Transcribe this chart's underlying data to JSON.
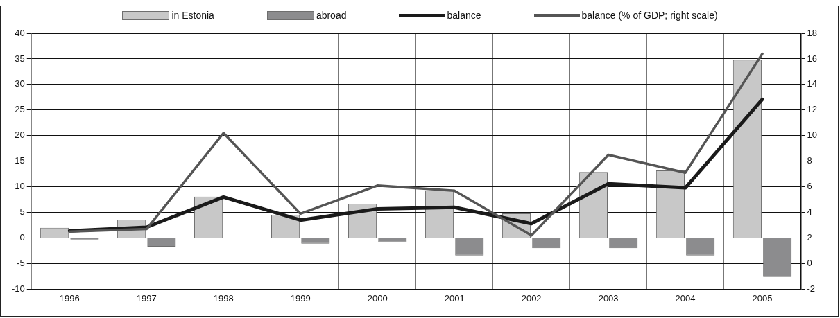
{
  "chart_data": {
    "type": "bar",
    "categories": [
      "1996",
      "1997",
      "1998",
      "1999",
      "2000",
      "2001",
      "2002",
      "2003",
      "2004",
      "2005"
    ],
    "series": [
      {
        "name": "in Estonia",
        "color": "#c8c8c8",
        "values": [
          2.0,
          3.6,
          8.1,
          4.5,
          6.7,
          9.3,
          4.8,
          12.9,
          13.2,
          34.8
        ]
      },
      {
        "name": "abroad",
        "color": "#8c8c8e",
        "values": [
          -0.3,
          -1.7,
          null,
          -1.1,
          -0.8,
          -3.4,
          -2.0,
          -2.0,
          -3.4,
          -7.6
        ]
      },
      {
        "name": "balance",
        "type": "line",
        "color": "#1a1a1a",
        "values": [
          1.4,
          2.1,
          8.0,
          3.5,
          5.7,
          6.0,
          2.8,
          10.6,
          9.8,
          27.1
        ]
      },
      {
        "name": "balance (% of GDP; right scale)",
        "type": "line",
        "axis": "y2",
        "color": "#555555",
        "values": [
          2.5,
          2.7,
          10.2,
          3.9,
          6.1,
          5.7,
          2.2,
          8.5,
          7.1,
          16.4
        ]
      }
    ],
    "ylim": [
      -10,
      40
    ],
    "yticks": [
      -10,
      -5,
      0,
      5,
      10,
      15,
      20,
      25,
      30,
      35,
      40
    ],
    "y2lim": [
      -2,
      18
    ],
    "y2ticks": [
      -2,
      0,
      2,
      4,
      6,
      8,
      10,
      12,
      14,
      16,
      18
    ],
    "grid": true,
    "legend": "top",
    "marker": "none",
    "line_style": "solid"
  }
}
